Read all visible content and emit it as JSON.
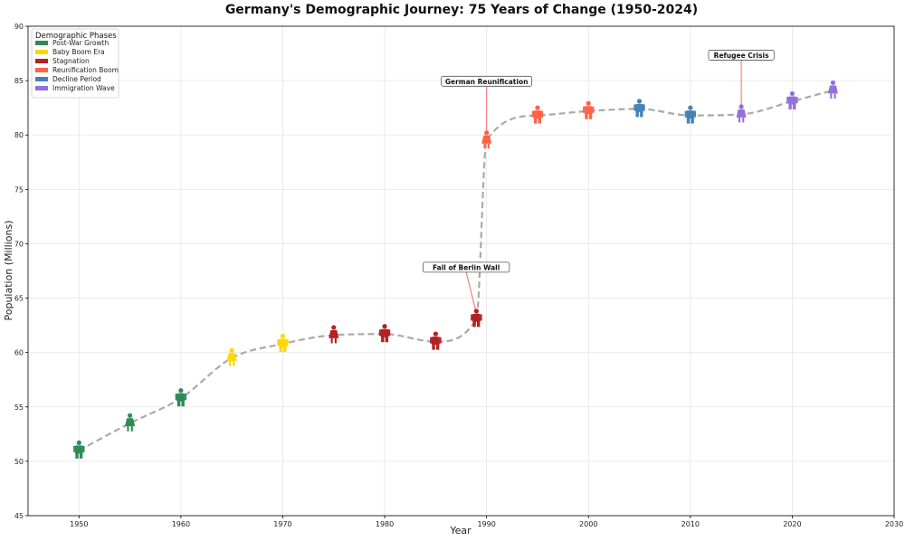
{
  "chart_data": {
    "type": "line",
    "title": "Germany's Demographic Journey: 75 Years of Change (1950-2024)",
    "xlabel": "Year",
    "ylabel": "Population (Millions)",
    "xlim": [
      1945,
      2030
    ],
    "ylim": [
      45,
      90
    ],
    "x_ticks": [
      1950,
      1960,
      1970,
      1980,
      1990,
      2000,
      2010,
      2020,
      2030
    ],
    "y_ticks": [
      45,
      50,
      55,
      60,
      65,
      70,
      75,
      80,
      85,
      90
    ],
    "grid": true,
    "line_style": "dashed",
    "line_color": "#aaaaaa",
    "legend": {
      "title": "Demographic Phases",
      "position": "top-left",
      "entries": [
        {
          "label": "Post-War Growth",
          "color": "#2e8b57"
        },
        {
          "label": "Baby Boom Era",
          "color": "#ffd700"
        },
        {
          "label": "Stagnation",
          "color": "#b22222"
        },
        {
          "label": "Reunification Boom",
          "color": "#ff6347"
        },
        {
          "label": "Decline Period",
          "color": "#4682b4"
        },
        {
          "label": "Immigration Wave",
          "color": "#9370db"
        }
      ]
    },
    "points": [
      {
        "year": 1950,
        "value": 51.0,
        "phase": 0,
        "figure": "male"
      },
      {
        "year": 1955,
        "value": 53.5,
        "phase": 0,
        "figure": "female"
      },
      {
        "year": 1960,
        "value": 55.8,
        "phase": 0,
        "figure": "male"
      },
      {
        "year": 1965,
        "value": 59.5,
        "phase": 1,
        "figure": "female"
      },
      {
        "year": 1970,
        "value": 60.8,
        "phase": 1,
        "figure": "male"
      },
      {
        "year": 1975,
        "value": 61.6,
        "phase": 2,
        "figure": "female"
      },
      {
        "year": 1980,
        "value": 61.7,
        "phase": 2,
        "figure": "male"
      },
      {
        "year": 1985,
        "value": 61.0,
        "phase": 2,
        "figure": "male"
      },
      {
        "year": 1989,
        "value": 63.1,
        "phase": 2,
        "figure": "male"
      },
      {
        "year": 1990,
        "value": 79.5,
        "phase": 3,
        "figure": "female"
      },
      {
        "year": 1995,
        "value": 81.8,
        "phase": 3,
        "figure": "male"
      },
      {
        "year": 2000,
        "value": 82.2,
        "phase": 3,
        "figure": "male"
      },
      {
        "year": 2005,
        "value": 82.4,
        "phase": 4,
        "figure": "male"
      },
      {
        "year": 2010,
        "value": 81.8,
        "phase": 4,
        "figure": "male"
      },
      {
        "year": 2015,
        "value": 81.9,
        "phase": 5,
        "figure": "female"
      },
      {
        "year": 2020,
        "value": 83.1,
        "phase": 5,
        "figure": "male"
      },
      {
        "year": 2024,
        "value": 84.1,
        "phase": 5,
        "figure": "female"
      }
    ],
    "annotations": [
      {
        "text": "Fall of Berlin Wall",
        "year": 1989,
        "value": 63.1,
        "label_value": 67.8,
        "label_year": 1988
      },
      {
        "text": "German Reunification",
        "year": 1990,
        "value": 79.5,
        "label_value": 84.9,
        "label_year": 1990
      },
      {
        "text": "Refugee Crisis",
        "year": 2015,
        "value": 81.9,
        "label_value": 87.3,
        "label_year": 2015
      }
    ]
  }
}
